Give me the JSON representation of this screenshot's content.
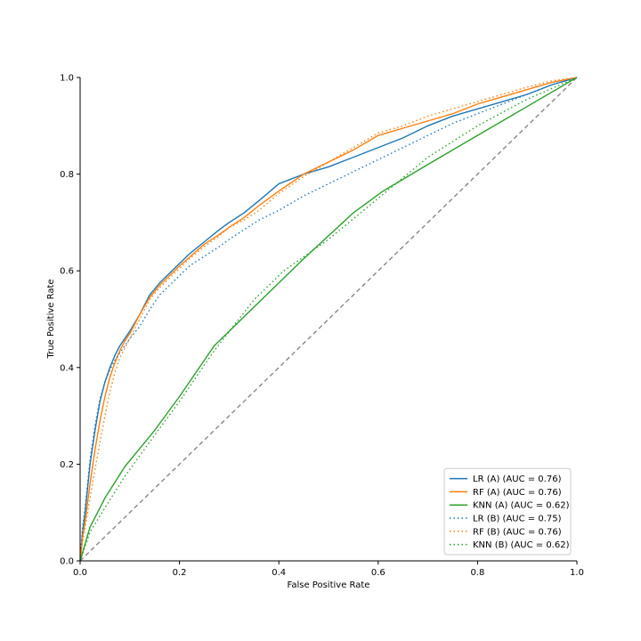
{
  "chart_data": {
    "type": "line",
    "title": "",
    "xlabel": "False Positive Rate",
    "ylabel": "True Positive Rate",
    "xlim": [
      0,
      1
    ],
    "ylim": [
      0,
      1
    ],
    "x_ticks": [
      "0.0",
      "0.2",
      "0.4",
      "0.6",
      "0.8",
      "1.0"
    ],
    "y_ticks": [
      "0.0",
      "0.2",
      "0.4",
      "0.6",
      "0.8",
      "1.0"
    ],
    "grid": false,
    "legend_position": "lower-right",
    "series": [
      {
        "name": "LR (A) (AUC = 0.76)",
        "color": "#1f77b4",
        "style": "solid",
        "x": [
          0,
          0.005,
          0.01,
          0.02,
          0.03,
          0.04,
          0.05,
          0.06,
          0.07,
          0.08,
          0.09,
          0.1,
          0.12,
          0.14,
          0.16,
          0.18,
          0.2,
          0.22,
          0.25,
          0.28,
          0.3,
          0.33,
          0.36,
          0.4,
          0.45,
          0.5,
          0.55,
          0.6,
          0.65,
          0.7,
          0.75,
          0.8,
          0.85,
          0.9,
          0.95,
          1.0
        ],
        "y": [
          0,
          0.06,
          0.1,
          0.2,
          0.27,
          0.33,
          0.37,
          0.4,
          0.425,
          0.445,
          0.46,
          0.475,
          0.51,
          0.55,
          0.575,
          0.595,
          0.615,
          0.635,
          0.66,
          0.685,
          0.7,
          0.72,
          0.745,
          0.78,
          0.8,
          0.815,
          0.835,
          0.855,
          0.875,
          0.9,
          0.92,
          0.935,
          0.95,
          0.965,
          0.985,
          1.0
        ]
      },
      {
        "name": "RF (A) (AUC = 0.76)",
        "color": "#ff7f0e",
        "style": "solid",
        "x": [
          0,
          0.005,
          0.01,
          0.02,
          0.03,
          0.04,
          0.05,
          0.06,
          0.07,
          0.08,
          0.09,
          0.1,
          0.12,
          0.14,
          0.16,
          0.18,
          0.2,
          0.22,
          0.25,
          0.28,
          0.3,
          0.33,
          0.36,
          0.4,
          0.45,
          0.5,
          0.55,
          0.6,
          0.65,
          0.7,
          0.75,
          0.8,
          0.85,
          0.9,
          0.95,
          1.0
        ],
        "y": [
          0,
          0.05,
          0.08,
          0.16,
          0.23,
          0.29,
          0.34,
          0.38,
          0.41,
          0.435,
          0.455,
          0.47,
          0.51,
          0.545,
          0.57,
          0.59,
          0.61,
          0.628,
          0.655,
          0.675,
          0.69,
          0.71,
          0.735,
          0.765,
          0.8,
          0.825,
          0.85,
          0.88,
          0.895,
          0.91,
          0.925,
          0.945,
          0.96,
          0.975,
          0.99,
          1.0
        ]
      },
      {
        "name": "KNN (A) (AUC = 0.62)",
        "color": "#2ca02c",
        "style": "solid",
        "x": [
          0,
          0.02,
          0.05,
          0.09,
          0.15,
          0.2,
          0.27,
          0.35,
          0.45,
          0.55,
          0.61,
          0.7,
          0.8,
          0.9,
          1.0
        ],
        "y": [
          0,
          0.07,
          0.13,
          0.195,
          0.27,
          0.34,
          0.445,
          0.525,
          0.625,
          0.72,
          0.765,
          0.82,
          0.88,
          0.94,
          1.0
        ]
      },
      {
        "name": "LR (B) (AUC = 0.75)",
        "color": "#1f77b4",
        "style": "dotted",
        "x": [
          0,
          0.005,
          0.01,
          0.02,
          0.03,
          0.04,
          0.05,
          0.06,
          0.07,
          0.08,
          0.09,
          0.1,
          0.12,
          0.14,
          0.16,
          0.18,
          0.2,
          0.22,
          0.25,
          0.28,
          0.3,
          0.33,
          0.36,
          0.4,
          0.45,
          0.5,
          0.55,
          0.6,
          0.65,
          0.7,
          0.75,
          0.8,
          0.85,
          0.9,
          0.95,
          1.0
        ],
        "y": [
          0,
          0.07,
          0.11,
          0.21,
          0.28,
          0.335,
          0.37,
          0.395,
          0.415,
          0.43,
          0.445,
          0.46,
          0.485,
          0.52,
          0.55,
          0.57,
          0.59,
          0.61,
          0.63,
          0.65,
          0.665,
          0.685,
          0.705,
          0.725,
          0.755,
          0.78,
          0.805,
          0.83,
          0.855,
          0.88,
          0.905,
          0.925,
          0.945,
          0.965,
          0.985,
          1.0
        ]
      },
      {
        "name": "RF (B) (AUC = 0.76)",
        "color": "#ff7f0e",
        "style": "dotted",
        "x": [
          0,
          0.005,
          0.01,
          0.02,
          0.03,
          0.04,
          0.05,
          0.06,
          0.07,
          0.08,
          0.09,
          0.1,
          0.12,
          0.14,
          0.16,
          0.18,
          0.2,
          0.22,
          0.25,
          0.28,
          0.3,
          0.33,
          0.36,
          0.4,
          0.45,
          0.5,
          0.55,
          0.6,
          0.65,
          0.7,
          0.75,
          0.8,
          0.85,
          0.9,
          0.95,
          1.0
        ],
        "y": [
          0,
          0.04,
          0.07,
          0.13,
          0.19,
          0.245,
          0.3,
          0.35,
          0.39,
          0.42,
          0.44,
          0.46,
          0.5,
          0.54,
          0.565,
          0.585,
          0.605,
          0.625,
          0.65,
          0.672,
          0.69,
          0.705,
          0.725,
          0.76,
          0.795,
          0.825,
          0.855,
          0.885,
          0.9,
          0.92,
          0.935,
          0.95,
          0.965,
          0.98,
          0.993,
          1.0
        ]
      },
      {
        "name": "KNN (B) (AUC = 0.62)",
        "color": "#2ca02c",
        "style": "dotted",
        "x": [
          0,
          0.02,
          0.05,
          0.09,
          0.15,
          0.2,
          0.27,
          0.35,
          0.41,
          0.5,
          0.6,
          0.7,
          0.8,
          0.9,
          1.0
        ],
        "y": [
          0,
          0.06,
          0.11,
          0.175,
          0.26,
          0.33,
          0.435,
          0.54,
          0.6,
          0.665,
          0.75,
          0.835,
          0.9,
          0.955,
          1.0
        ]
      }
    ],
    "reference_line": {
      "color": "#808080",
      "style": "dashed",
      "x": [
        0,
        1
      ],
      "y": [
        0,
        1
      ]
    }
  }
}
